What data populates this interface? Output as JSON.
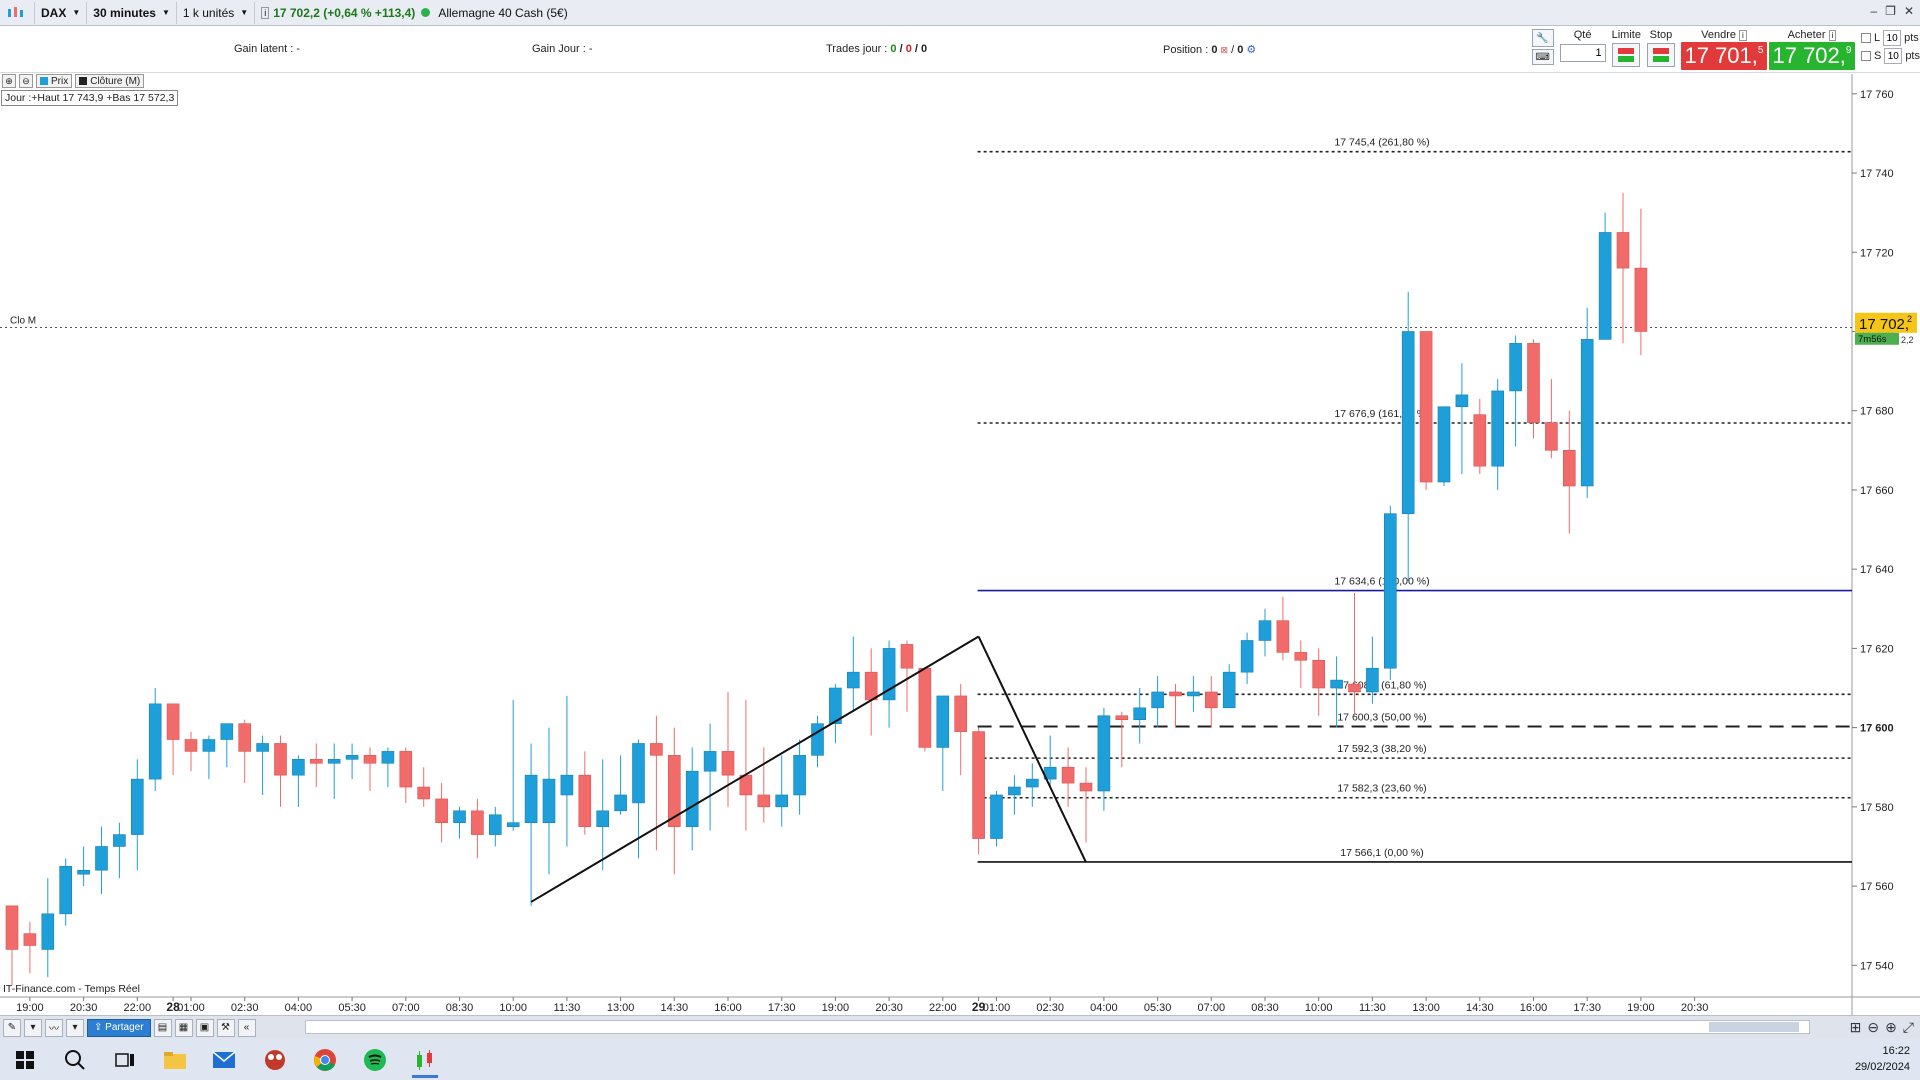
{
  "topbar": {
    "instrument": "DAX",
    "timeframe": "30 minutes",
    "units": "1 k unités",
    "quote": "17 702,2 (+0,64 % +113,4)",
    "instrument_name": "Allemagne 40 Cash (5€)"
  },
  "stats": {
    "gain_latent_label": "Gain latent :",
    "gain_latent_value": "-",
    "gain_jour_label": "Gain Jour :",
    "gain_jour_value": "-",
    "trades_label": "Trades jour :",
    "trades_a": "0",
    "trades_b": "0",
    "trades_c": "0",
    "position_label": "Position :",
    "position_a": "0",
    "position_b": "0"
  },
  "order": {
    "qty_label": "Qté",
    "qty_value": "1",
    "limit_label": "Limite",
    "stop_label": "Stop",
    "sell_label": "Vendre",
    "buy_label": "Acheter",
    "sell_main": "17 701,",
    "sell_sup": "5",
    "buy_main": "17 702,",
    "buy_sup": "9",
    "l_label": "L",
    "s_label": "S",
    "l_pts": "10",
    "s_pts": "10",
    "pts_label": "pts"
  },
  "chart_tools": {
    "prix": "Prix",
    "cloture": "Clôture (M)"
  },
  "day_info": "Jour :+Haut 17 743,9 +Bas 17 572,3",
  "colors": {
    "up": "#1e9fd9",
    "down": "#f26b6b",
    "fibo_solid": "#1a1aa0",
    "price_tag": "#f5c518",
    "timer_tag": "#4caf50"
  },
  "chart_data": {
    "type": "candlestick",
    "ylim": [
      17532,
      17765
    ],
    "y_ticks": [
      17540,
      17560,
      17580,
      17600,
      17620,
      17640,
      17660,
      17680,
      17700,
      17720,
      17740,
      17760
    ],
    "y_tick_labels": [
      "17 540",
      "17 560",
      "17 580",
      "17 600",
      "17 620",
      "17 640",
      "17 660",
      "17 680",
      "17 700",
      "17 720",
      "17 740",
      "17 760"
    ],
    "x_ticks": [
      "19:00",
      "20:30",
      "22:00",
      "28",
      "01:00",
      "02:30",
      "04:00",
      "05:30",
      "07:00",
      "08:30",
      "10:00",
      "11:30",
      "13:00",
      "14:30",
      "16:00",
      "17:30",
      "19:00",
      "20:30",
      "22:00",
      "29",
      "01:00",
      "02:30",
      "04:00",
      "05:30",
      "07:00",
      "08:30",
      "10:00",
      "11:30",
      "13:00",
      "14:30",
      "16:00",
      "17:30",
      "19:00",
      "20:30"
    ],
    "x_tick_candle_index": [
      1,
      4,
      7,
      9,
      10,
      13,
      16,
      19,
      22,
      25,
      28,
      31,
      34,
      37,
      40,
      43,
      46,
      49,
      52,
      54,
      55,
      58,
      61,
      64,
      67,
      70,
      73,
      76,
      79,
      82,
      85,
      88,
      91,
      94
    ],
    "x_tick_bold": [
      "28",
      "29"
    ],
    "candles": [
      [
        17555,
        17555,
        17535,
        17544
      ],
      [
        17548,
        17551,
        17538,
        17545
      ],
      [
        17544,
        17562,
        17537,
        17553
      ],
      [
        17553,
        17567,
        17550,
        17565
      ],
      [
        17563,
        17570,
        17560,
        17564
      ],
      [
        17564,
        17575,
        17558,
        17570
      ],
      [
        17570,
        17576,
        17562,
        17573
      ],
      [
        17573,
        17592,
        17564,
        17587
      ],
      [
        17587,
        17610,
        17584,
        17606
      ],
      [
        17606,
        17606,
        17588,
        17597
      ],
      [
        17597,
        17599,
        17589,
        17594
      ],
      [
        17594,
        17598,
        17587,
        17597
      ],
      [
        17597,
        17600,
        17590,
        17601
      ],
      [
        17601,
        17602,
        17586,
        17594
      ],
      [
        17594,
        17598,
        17583,
        17596
      ],
      [
        17596,
        17598,
        17580,
        17588
      ],
      [
        17588,
        17593,
        17580,
        17592
      ],
      [
        17592,
        17596,
        17585,
        17591
      ],
      [
        17591,
        17596,
        17582,
        17592
      ],
      [
        17592,
        17596,
        17587,
        17593
      ],
      [
        17593,
        17595,
        17584,
        17591
      ],
      [
        17591,
        17595,
        17585,
        17594
      ],
      [
        17594,
        17595,
        17581,
        17585
      ],
      [
        17585,
        17590,
        17580,
        17582
      ],
      [
        17582,
        17586,
        17571,
        17576
      ],
      [
        17576,
        17580,
        17572,
        17579
      ],
      [
        17579,
        17582,
        17567,
        17573
      ],
      [
        17573,
        17580,
        17570,
        17578
      ],
      [
        17575,
        17607,
        17574,
        17576
      ],
      [
        17576,
        17596,
        17555,
        17588
      ],
      [
        17576,
        17600,
        17563,
        17587
      ],
      [
        17583,
        17608,
        17570,
        17588
      ],
      [
        17588,
        17594,
        17573,
        17575
      ],
      [
        17575,
        17592,
        17564,
        17579
      ],
      [
        17579,
        17593,
        17578,
        17583
      ],
      [
        17581,
        17597,
        17567,
        17596
      ],
      [
        17596,
        17603,
        17569,
        17593
      ],
      [
        17593,
        17600,
        17563,
        17575
      ],
      [
        17575,
        17595,
        17569,
        17589
      ],
      [
        17589,
        17601,
        17574,
        17594
      ],
      [
        17594,
        17609,
        17580,
        17588
      ],
      [
        17588,
        17607,
        17574,
        17583
      ],
      [
        17583,
        17595,
        17576,
        17580
      ],
      [
        17580,
        17593,
        17575,
        17583
      ],
      [
        17583,
        17597,
        17578,
        17593
      ],
      [
        17593,
        17603,
        17590,
        17601
      ],
      [
        17601,
        17611,
        17596,
        17610
      ],
      [
        17610,
        17623,
        17604,
        17614
      ],
      [
        17614,
        17620,
        17598,
        17607
      ],
      [
        17607,
        17622,
        17600,
        17620
      ],
      [
        17621,
        17622,
        17604,
        17615
      ],
      [
        17615,
        17614,
        17594,
        17595
      ],
      [
        17595,
        17608,
        17584,
        17608
      ],
      [
        17608,
        17611,
        17588,
        17599
      ],
      [
        17599,
        17600,
        17568,
        17572
      ],
      [
        17572,
        17584,
        17570,
        17583
      ],
      [
        17583,
        17588,
        17578,
        17585
      ],
      [
        17585,
        17591,
        17580,
        17587
      ],
      [
        17587,
        17598,
        17585,
        17590
      ],
      [
        17590,
        17595,
        17580,
        17586
      ],
      [
        17586,
        17590,
        17571,
        17584
      ],
      [
        17584,
        17605,
        17579,
        17603
      ],
      [
        17603,
        17604,
        17590,
        17602
      ],
      [
        17602,
        17610,
        17596,
        17605
      ],
      [
        17605,
        17613,
        17600,
        17609
      ],
      [
        17609,
        17611,
        17600,
        17608
      ],
      [
        17608,
        17613,
        17604,
        17609
      ],
      [
        17609,
        17613,
        17600,
        17605
      ],
      [
        17605,
        17616,
        17605,
        17614
      ],
      [
        17614,
        17624,
        17611,
        17622
      ],
      [
        17622,
        17630,
        17618,
        17627
      ],
      [
        17627,
        17633,
        17617,
        17619
      ],
      [
        17619,
        17622,
        17610,
        17617
      ],
      [
        17617,
        17620,
        17603,
        17610
      ],
      [
        17610,
        17618,
        17600,
        17612
      ],
      [
        17611,
        17634,
        17603,
        17609
      ],
      [
        17609,
        17623,
        17606,
        17615
      ],
      [
        17615,
        17656,
        17612,
        17654
      ],
      [
        17654,
        17710,
        17637,
        17700
      ],
      [
        17700,
        17698,
        17660,
        17662
      ],
      [
        17662,
        17680,
        17661,
        17681
      ],
      [
        17681,
        17692,
        17664,
        17684
      ],
      [
        17679,
        17683,
        17664,
        17666
      ],
      [
        17666,
        17688,
        17660,
        17685
      ],
      [
        17685,
        17699,
        17671,
        17697
      ],
      [
        17697,
        17698,
        17673,
        17677
      ],
      [
        17677,
        17688,
        17668,
        17670
      ],
      [
        17670,
        17680,
        17649,
        17661
      ],
      [
        17661,
        17706,
        17658,
        17698
      ],
      [
        17698,
        17730,
        17698,
        17725
      ],
      [
        17725,
        17735,
        17697,
        17716
      ],
      [
        17716,
        17731,
        17694,
        17700
      ]
    ],
    "fibonacci": [
      {
        "price": 17745.4,
        "label": "17 745,4 (261,80 %)",
        "style": "dotted"
      },
      {
        "price": 17676.9,
        "label": "17 676,9 (161,80 %)",
        "style": "dotted"
      },
      {
        "price": 17634.6,
        "label": "17 634,6 (100,00 %)",
        "style": "solid-blue"
      },
      {
        "price": 17608.4,
        "label": "17 608,4 (61,80 %)",
        "style": "dotted"
      },
      {
        "price": 17600.3,
        "label": "17 600,3 (50,00 %)",
        "style": "dashed"
      },
      {
        "price": 17592.3,
        "label": "17 592,3 (38,20 %)",
        "style": "dotted"
      },
      {
        "price": 17582.3,
        "label": "17 582,3 (23,60 %)",
        "style": "dotted"
      },
      {
        "price": 17566.1,
        "label": "17 566,1 (0,00 %)",
        "style": "solid-black"
      }
    ],
    "fib_start_index": 54,
    "trend_lines": [
      {
        "from": [
          29,
          17556
        ],
        "to": [
          54,
          17623
        ]
      },
      {
        "from": [
          54,
          17623
        ],
        "to": [
          60,
          17566
        ]
      }
    ],
    "close_line": {
      "price": 17701,
      "label": "Clo M"
    },
    "current_price": {
      "label": "17 702,",
      "sup": "2"
    },
    "timer": "7m56s",
    "timer_sub": "2,2",
    "axis_emphasis_price": "17 600",
    "watermark": "IT-Finance.com - Temps Réel"
  },
  "bottom": {
    "share_label": "Partager"
  },
  "clock": {
    "time": "16:22",
    "date": "29/02/2024"
  }
}
